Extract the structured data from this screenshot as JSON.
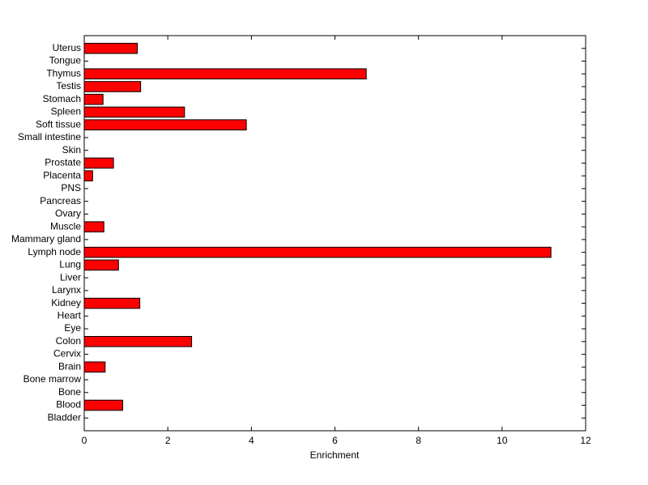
{
  "chart_data": {
    "type": "barh",
    "xlabel": "Enrichment",
    "categories": [
      "Bladder",
      "Blood",
      "Bone",
      "Bone marrow",
      "Brain",
      "Cervix",
      "Colon",
      "Eye",
      "Heart",
      "Kidney",
      "Larynx",
      "Liver",
      "Lung",
      "Lymph node",
      "Mammary gland",
      "Muscle",
      "Ovary",
      "Pancreas",
      "PNS",
      "Placenta",
      "Prostate",
      "Skin",
      "Small intestine",
      "Soft tissue",
      "Spleen",
      "Stomach",
      "Testis",
      "Thymus",
      "Tongue",
      "Uterus"
    ],
    "values": [
      0,
      0.92,
      0,
      0,
      0.5,
      0,
      2.57,
      0,
      0,
      1.33,
      0,
      0,
      0.82,
      11.17,
      0,
      0.47,
      0,
      0,
      0,
      0.2,
      0.7,
      0,
      0,
      3.88,
      2.4,
      0.45,
      1.35,
      6.75,
      0,
      1.27
    ],
    "color": "#ff0000",
    "xlim": [
      0,
      12
    ],
    "xticks": [
      0,
      2,
      4,
      6,
      8,
      10,
      12
    ]
  }
}
